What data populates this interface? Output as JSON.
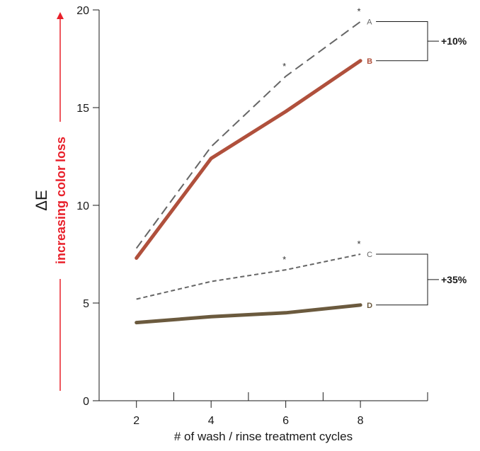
{
  "colors": {
    "arrow": "#e8202a",
    "series_A": "#666666",
    "series_B": "#b0503c",
    "series_C": "#666666",
    "series_D": "#6b5a3e",
    "axis": "#1a1a1a"
  },
  "chart_data": {
    "type": "line",
    "title": "",
    "xlabel": "# of wash / rinse treatment cycles",
    "ylabel": "ΔE",
    "y_arrow_label": "increasing color loss",
    "xlim": [
      1,
      9.8
    ],
    "ylim": [
      0,
      20
    ],
    "x_ticks": [
      2,
      4,
      6,
      8
    ],
    "y_ticks": [
      0,
      5,
      10,
      15,
      20
    ],
    "grid": false,
    "series": [
      {
        "name": "A",
        "style": "dashed-long",
        "color": "#666666",
        "x": [
          2,
          4,
          6,
          8
        ],
        "y": [
          7.8,
          13.0,
          16.6,
          19.4
        ],
        "stars_at": [
          6,
          8
        ]
      },
      {
        "name": "B",
        "style": "solid-thick",
        "color": "#b0503c",
        "x": [
          2,
          4,
          6,
          8
        ],
        "y": [
          7.3,
          12.4,
          14.8,
          17.4
        ],
        "stars_at": []
      },
      {
        "name": "C",
        "style": "dashed-short",
        "color": "#666666",
        "x": [
          2,
          4,
          6,
          8
        ],
        "y": [
          5.2,
          6.1,
          6.7,
          7.5
        ],
        "stars_at": [
          6,
          8
        ]
      },
      {
        "name": "D",
        "style": "solid-thick",
        "color": "#6b5a3e",
        "x": [
          2,
          4,
          6,
          8
        ],
        "y": [
          4.0,
          4.3,
          4.5,
          4.9
        ],
        "stars_at": []
      }
    ],
    "brackets": [
      {
        "from": "A",
        "to": "B",
        "label": "+10%"
      },
      {
        "from": "C",
        "to": "D",
        "label": "+35%"
      }
    ],
    "star_symbol": "*"
  }
}
